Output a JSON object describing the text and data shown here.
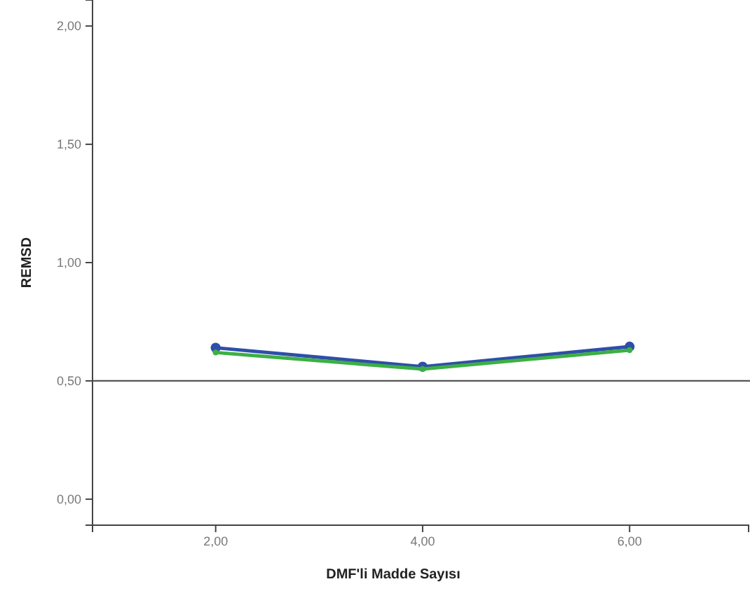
{
  "chart_data": {
    "type": "line",
    "xlabel": "DMF'li Madde Sayısı",
    "ylabel": "REMSD",
    "x": [
      2,
      4,
      6
    ],
    "series": [
      {
        "color": "#2e4fa8",
        "values": [
          0.64,
          0.56,
          0.645
        ]
      },
      {
        "color": "#3cb043",
        "values": [
          0.62,
          0.55,
          0.63
        ]
      }
    ],
    "xlim": [
      0.81,
      7.15
    ],
    "ylim": [
      -0.11,
      2.11
    ],
    "xticks": [
      {
        "value": 2,
        "label": "2,00"
      },
      {
        "value": 4,
        "label": "4,00"
      },
      {
        "value": 6,
        "label": "6,00"
      }
    ],
    "yticks": [
      {
        "value": 0,
        "label": "0,00"
      },
      {
        "value": 0.5,
        "label": "0,50"
      },
      {
        "value": 1,
        "label": "1,00"
      },
      {
        "value": 1.5,
        "label": "1,50"
      },
      {
        "value": 2,
        "label": "2,00"
      }
    ],
    "ref_lines": [
      {
        "axis": "y",
        "value": 0.5,
        "color": "#555555"
      }
    ],
    "marker": "circle",
    "line_style": "solid"
  }
}
